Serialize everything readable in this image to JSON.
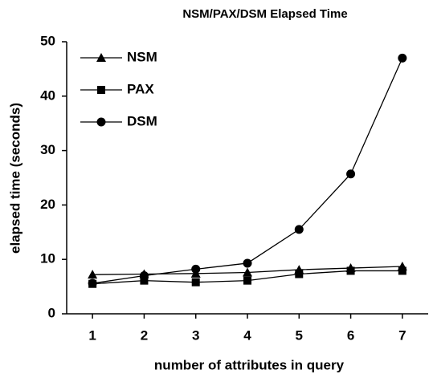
{
  "chart_data": {
    "type": "line",
    "title": "NSM/PAX/DSM Elapsed Time",
    "x_label": "number of attributes in query",
    "y_label": "elapsed time (seconds)",
    "x": [
      1,
      2,
      3,
      4,
      5,
      6,
      7
    ],
    "series": [
      {
        "name": "NSM",
        "color": "#000000",
        "marker": "triangle",
        "values": [
          7.2,
          7.3,
          7.4,
          7.6,
          8.1,
          8.4,
          8.7
        ]
      },
      {
        "name": "PAX",
        "color": "#000000",
        "marker": "square",
        "values": [
          5.5,
          6.1,
          5.8,
          6.1,
          7.3,
          7.9,
          7.9
        ]
      },
      {
        "name": "DSM",
        "color": "#000000",
        "marker": "circle",
        "values": [
          5.6,
          7.0,
          8.2,
          9.3,
          15.5,
          25.7,
          47.0
        ]
      }
    ],
    "xlim": [
      0.5,
      7.5
    ],
    "xticks": [
      1,
      2,
      3,
      4,
      5,
      6,
      7
    ],
    "ylim": [
      0,
      50
    ],
    "yticks": [
      0,
      10,
      20,
      30,
      40,
      50
    ],
    "grid": false,
    "legend": "upper left"
  }
}
